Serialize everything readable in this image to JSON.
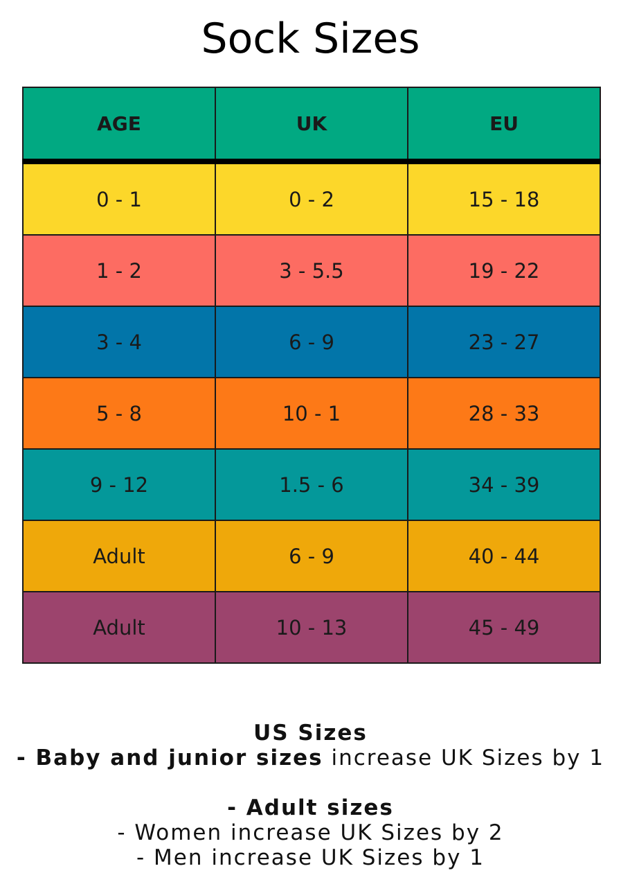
{
  "title": "Sock Sizes",
  "colors": {
    "header": "#01a982",
    "rows": [
      "#fcd72a",
      "#fd6c62",
      "#0275a9",
      "#fd7917",
      "#04989a",
      "#efa80a",
      "#9c446d"
    ],
    "border": "#1a1a1a"
  },
  "table": {
    "columns": [
      "AGE",
      "UK",
      "EU"
    ],
    "rows": [
      {
        "age": "0 - 1",
        "uk": "0 - 2",
        "eu": "15 - 18"
      },
      {
        "age": "1 - 2",
        "uk": "3 - 5.5",
        "eu": "19 - 22"
      },
      {
        "age": "3 - 4",
        "uk": "6 - 9",
        "eu": "23 - 27"
      },
      {
        "age": "5 - 8",
        "uk": "10 - 1",
        "eu": "28 - 33"
      },
      {
        "age": "9 - 12",
        "uk": "1.5 - 6",
        "eu": "34 - 39"
      },
      {
        "age": "Adult",
        "uk": "6 - 9",
        "eu": "40 - 44"
      },
      {
        "age": "Adult",
        "uk": "10 - 13",
        "eu": "45 - 49"
      }
    ]
  },
  "notes": {
    "heading": "US Sizes",
    "junior_bold": "- Baby and junior sizes",
    "junior_rest": " increase UK Sizes by 1",
    "adult_heading": "- Adult sizes",
    "women": "- Women increase UK Sizes by 2",
    "men": "- Men increase UK Sizes by 1"
  }
}
